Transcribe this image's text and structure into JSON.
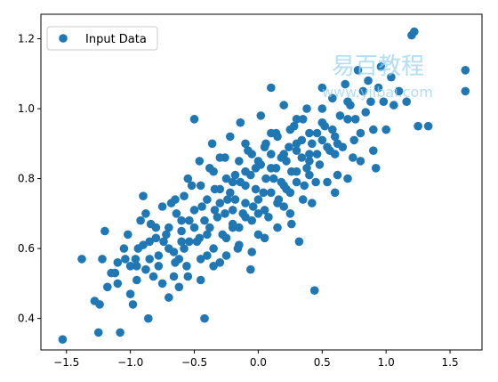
{
  "watermark": {
    "text_cn": "易百教程",
    "text_en": "www.yiibai.com"
  },
  "colors": {
    "point": "#1f77b4",
    "axis": "#000000",
    "background": "#ffffff"
  },
  "chart_data": {
    "type": "scatter",
    "title": "",
    "xlabel": "",
    "ylabel": "",
    "xlim": [
      -1.7,
      1.75
    ],
    "ylim": [
      0.31,
      1.27
    ],
    "xticks": [
      -1.5,
      -1.0,
      -0.5,
      0.0,
      0.5,
      1.0,
      1.5
    ],
    "yticks": [
      0.4,
      0.6,
      0.8,
      1.0,
      1.2
    ],
    "xtick_labels": [
      "−1.5",
      "−1.0",
      "−0.5",
      "0.0",
      "0.5",
      "1.0",
      "1.5"
    ],
    "ytick_labels": [
      "0.4",
      "0.6",
      "0.8",
      "1.0",
      "1.2"
    ],
    "grid": false,
    "legend": {
      "position": "top-left",
      "entries": [
        "Input Data"
      ]
    },
    "series": [
      {
        "name": "Input Data",
        "points": [
          [
            -1.53,
            0.34
          ],
          [
            -1.38,
            0.57
          ],
          [
            -1.28,
            0.45
          ],
          [
            -1.24,
            0.44
          ],
          [
            -1.25,
            0.36
          ],
          [
            -1.22,
            0.57
          ],
          [
            -1.2,
            0.65
          ],
          [
            -1.18,
            0.49
          ],
          [
            -1.15,
            0.53
          ],
          [
            -1.12,
            0.53
          ],
          [
            -1.1,
            0.5
          ],
          [
            -1.1,
            0.56
          ],
          [
            -1.08,
            0.36
          ],
          [
            -1.05,
            0.6
          ],
          [
            -1.04,
            0.57
          ],
          [
            -1.0,
            0.47
          ],
          [
            -0.98,
            0.44
          ],
          [
            -0.96,
            0.57
          ],
          [
            -0.95,
            0.55
          ],
          [
            -0.92,
            0.68
          ],
          [
            -0.9,
            0.75
          ],
          [
            -0.88,
            0.7
          ],
          [
            -0.86,
            0.4
          ],
          [
            -0.85,
            0.62
          ],
          [
            -0.82,
            0.52
          ],
          [
            -0.8,
            0.66
          ],
          [
            -0.78,
            0.58
          ],
          [
            -0.75,
            0.72
          ],
          [
            -0.72,
            0.64
          ],
          [
            -0.7,
            0.46
          ],
          [
            -0.68,
            0.73
          ],
          [
            -0.66,
            0.59
          ],
          [
            -0.64,
            0.7
          ],
          [
            -0.62,
            0.49
          ],
          [
            -0.6,
            0.65
          ],
          [
            -0.58,
            0.75
          ],
          [
            -0.56,
            0.55
          ],
          [
            -0.54,
            0.68
          ],
          [
            -0.52,
            0.78
          ],
          [
            -0.5,
            0.97
          ],
          [
            -0.48,
            0.62
          ],
          [
            -0.46,
            0.85
          ],
          [
            -0.44,
            0.72
          ],
          [
            -0.42,
            0.4
          ],
          [
            -0.4,
            0.58
          ],
          [
            -0.38,
            0.83
          ],
          [
            -0.36,
            0.9
          ],
          [
            -0.34,
            0.77
          ],
          [
            -0.32,
            0.69
          ],
          [
            -0.3,
            0.56
          ],
          [
            -0.28,
            0.64
          ],
          [
            -0.26,
            0.86
          ],
          [
            -0.24,
            0.74
          ],
          [
            -0.22,
            0.92
          ],
          [
            -0.2,
            0.66
          ],
          [
            -0.18,
            0.81
          ],
          [
            -0.16,
            0.6
          ],
          [
            -0.14,
            0.96
          ],
          [
            -0.12,
            0.7
          ],
          [
            -0.1,
            0.78
          ],
          [
            -0.08,
            0.88
          ],
          [
            -0.06,
            0.54
          ],
          [
            -0.04,
            0.72
          ],
          [
            -0.02,
            0.83
          ],
          [
            0.0,
            0.64
          ],
          [
            0.02,
            0.98
          ],
          [
            0.04,
            0.76
          ],
          [
            0.06,
            0.9
          ],
          [
            0.08,
            0.69
          ],
          [
            0.1,
            1.06
          ],
          [
            0.12,
            0.8
          ],
          [
            0.14,
            0.93
          ],
          [
            0.16,
            0.74
          ],
          [
            0.18,
            0.86
          ],
          [
            0.2,
            1.01
          ],
          [
            0.22,
            0.77
          ],
          [
            0.24,
            0.89
          ],
          [
            0.26,
            0.67
          ],
          [
            0.28,
            0.95
          ],
          [
            0.3,
            0.82
          ],
          [
            0.32,
            0.62
          ],
          [
            0.34,
            0.91
          ],
          [
            0.36,
            0.78
          ],
          [
            0.38,
            1.0
          ],
          [
            0.4,
            0.87
          ],
          [
            0.42,
            0.73
          ],
          [
            0.44,
            0.48
          ],
          [
            0.46,
            0.93
          ],
          [
            0.48,
            0.84
          ],
          [
            0.5,
            1.06
          ],
          [
            0.52,
            0.95
          ],
          [
            0.54,
            0.79
          ],
          [
            0.56,
            0.88
          ],
          [
            0.58,
            1.03
          ],
          [
            0.6,
            0.92
          ],
          [
            0.62,
            0.81
          ],
          [
            0.64,
            0.98
          ],
          [
            0.66,
            0.89
          ],
          [
            0.68,
            1.07
          ],
          [
            0.7,
            0.97
          ],
          [
            0.72,
            1.01
          ],
          [
            0.74,
            0.86
          ],
          [
            0.76,
            0.97
          ],
          [
            0.78,
            1.11
          ],
          [
            0.8,
            0.93
          ],
          [
            0.82,
            1.05
          ],
          [
            0.84,
            0.99
          ],
          [
            0.86,
            1.08
          ],
          [
            0.88,
            1.02
          ],
          [
            0.9,
            0.94
          ],
          [
            0.92,
            0.83
          ],
          [
            0.94,
            1.06
          ],
          [
            0.96,
            1.12
          ],
          [
            0.98,
            1.02
          ],
          [
            1.0,
            0.94
          ],
          [
            1.04,
            1.09
          ],
          [
            1.06,
            1.01
          ],
          [
            1.1,
            1.05
          ],
          [
            1.16,
            1.02
          ],
          [
            1.2,
            1.21
          ],
          [
            1.22,
            1.22
          ],
          [
            1.25,
            0.95
          ],
          [
            1.33,
            0.95
          ],
          [
            1.62,
            1.11
          ],
          [
            1.62,
            1.05
          ],
          [
            -1.02,
            0.64
          ],
          [
            -0.94,
            0.6
          ],
          [
            -0.88,
            0.54
          ],
          [
            -0.84,
            0.67
          ],
          [
            -0.78,
            0.55
          ],
          [
            -0.74,
            0.62
          ],
          [
            -0.7,
            0.6
          ],
          [
            -0.66,
            0.52
          ],
          [
            -0.62,
            0.57
          ],
          [
            -0.58,
            0.6
          ],
          [
            -0.54,
            0.62
          ],
          [
            -0.5,
            0.66
          ],
          [
            -0.46,
            0.63
          ],
          [
            -0.42,
            0.68
          ],
          [
            -0.38,
            0.66
          ],
          [
            -0.34,
            0.71
          ],
          [
            -0.3,
            0.73
          ],
          [
            -0.26,
            0.7
          ],
          [
            -0.22,
            0.76
          ],
          [
            -0.18,
            0.74
          ],
          [
            -0.14,
            0.79
          ],
          [
            -0.1,
            0.73
          ],
          [
            -0.06,
            0.81
          ],
          [
            -0.02,
            0.77
          ],
          [
            0.02,
            0.84
          ],
          [
            0.06,
            0.8
          ],
          [
            0.1,
            0.87
          ],
          [
            0.14,
            0.83
          ],
          [
            0.18,
            0.79
          ],
          [
            0.22,
            0.85
          ],
          [
            0.26,
            0.82
          ],
          [
            0.3,
            0.88
          ],
          [
            0.34,
            0.86
          ],
          [
            0.38,
            0.83
          ],
          [
            0.42,
            0.9
          ],
          [
            0.46,
            0.87
          ],
          [
            0.5,
            0.91
          ],
          [
            0.54,
            0.89
          ],
          [
            0.58,
            0.94
          ],
          [
            0.62,
            0.9
          ],
          [
            -0.9,
            0.61
          ],
          [
            -0.8,
            0.63
          ],
          [
            -0.7,
            0.66
          ],
          [
            -0.6,
            0.68
          ],
          [
            -0.5,
            0.71
          ],
          [
            -0.4,
            0.74
          ],
          [
            -0.3,
            0.77
          ],
          [
            -0.2,
            0.79
          ],
          [
            -0.1,
            0.82
          ],
          [
            0.0,
            0.85
          ],
          [
            0.1,
            0.83
          ],
          [
            0.2,
            0.87
          ],
          [
            0.3,
            0.9
          ],
          [
            0.4,
            0.93
          ],
          [
            0.5,
            0.96
          ],
          [
            -0.45,
            0.57
          ],
          [
            -0.35,
            0.6
          ],
          [
            -0.25,
            0.63
          ],
          [
            -0.15,
            0.66
          ],
          [
            -0.05,
            0.68
          ],
          [
            0.05,
            0.71
          ],
          [
            0.15,
            0.73
          ],
          [
            0.25,
            0.76
          ],
          [
            0.35,
            0.74
          ],
          [
            0.45,
            0.79
          ],
          [
            -0.65,
            0.74
          ],
          [
            -0.55,
            0.8
          ],
          [
            -0.45,
            0.78
          ],
          [
            -0.35,
            0.82
          ],
          [
            -0.25,
            0.8
          ],
          [
            -0.15,
            0.85
          ],
          [
            -0.05,
            0.87
          ],
          [
            0.05,
            0.89
          ],
          [
            0.15,
            0.92
          ],
          [
            0.25,
            0.94
          ],
          [
            0.35,
            0.97
          ],
          [
            -1.0,
            0.55
          ],
          [
            -0.95,
            0.51
          ],
          [
            -0.85,
            0.57
          ],
          [
            -0.75,
            0.5
          ],
          [
            -0.65,
            0.56
          ],
          [
            -0.55,
            0.52
          ],
          [
            -0.45,
            0.51
          ],
          [
            -0.35,
            0.55
          ],
          [
            -0.25,
            0.58
          ],
          [
            -0.15,
            0.61
          ],
          [
            -0.05,
            0.59
          ],
          [
            0.05,
            0.63
          ],
          [
            0.15,
            0.66
          ],
          [
            0.25,
            0.7
          ],
          [
            0.7,
            0.8
          ],
          [
            0.8,
            0.85
          ],
          [
            0.9,
            0.88
          ],
          [
            0.6,
            0.76
          ],
          [
            0.75,
            0.91
          ],
          [
            -0.2,
            0.71
          ],
          [
            -0.1,
            0.69
          ],
          [
            0.0,
            0.74
          ],
          [
            0.1,
            0.76
          ],
          [
            0.2,
            0.72
          ],
          [
            0.3,
            0.79
          ],
          [
            0.4,
            0.81
          ],
          [
            -0.6,
            0.62
          ],
          [
            -0.4,
            0.64
          ],
          [
            -0.2,
            0.67
          ],
          [
            0.0,
            0.7
          ],
          [
            0.2,
            0.78
          ],
          [
            0.4,
            0.85
          ],
          [
            0.6,
            0.87
          ],
          [
            -0.3,
            0.86
          ],
          [
            -0.1,
            0.9
          ],
          [
            0.1,
            0.93
          ],
          [
            0.3,
            0.97
          ],
          [
            0.5,
            1.0
          ],
          [
            0.7,
            1.02
          ]
        ]
      }
    ]
  }
}
